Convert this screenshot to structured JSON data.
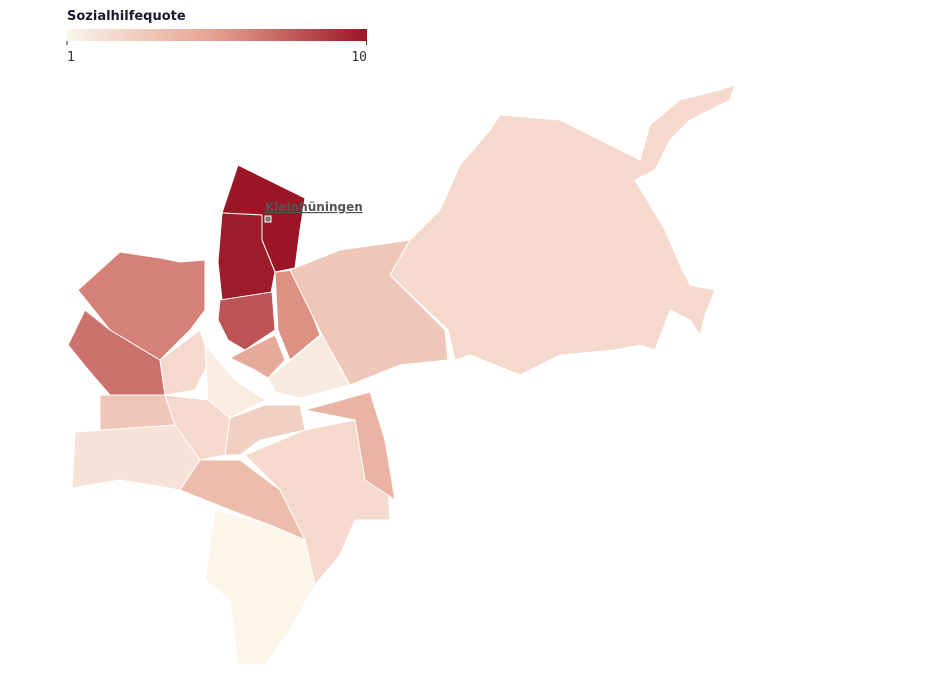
{
  "legend": {
    "title": "Sozialhilfequote",
    "min": 1,
    "max": 10,
    "colors": [
      "#fbf5ea",
      "#e5a08f",
      "#9b1526"
    ]
  },
  "label": "Kleinhüningen",
  "regions": {
    "values": [
      10,
      9.8,
      8,
      6,
      5,
      3.5,
      2.5,
      1.6,
      6.5,
      7,
      2.5,
      1.5,
      3.5,
      2,
      2.5,
      3,
      4,
      2.5,
      4.5,
      1
    ]
  }
}
